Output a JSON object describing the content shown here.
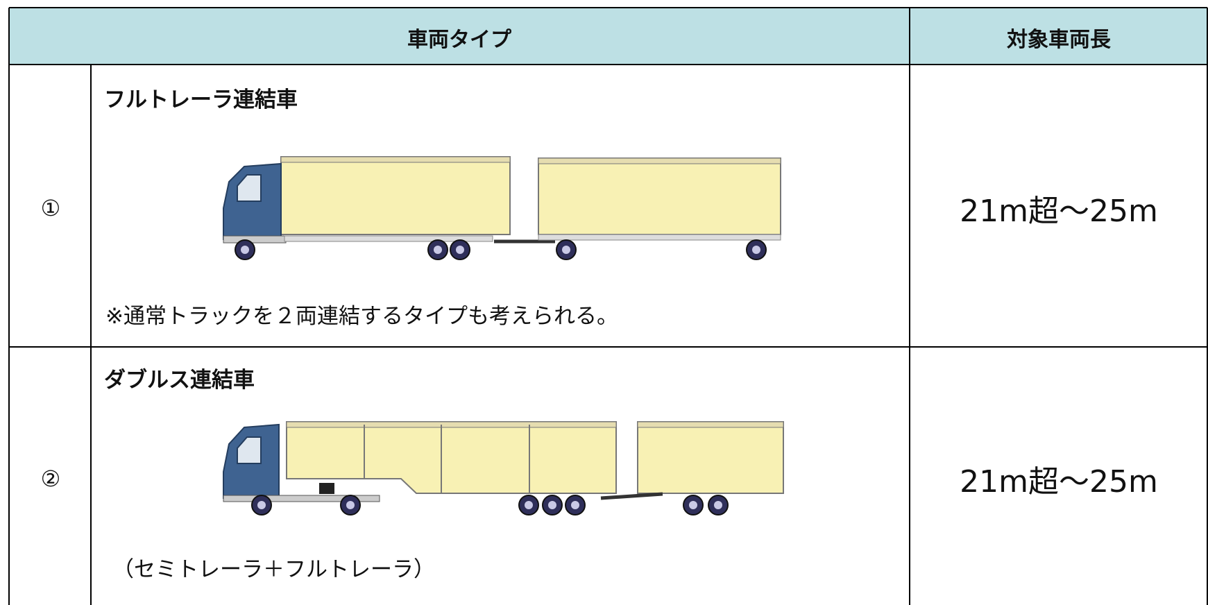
{
  "table": {
    "header": [
      "車両タイプ",
      "対象車両長"
    ],
    "rows": [
      {
        "number": "①",
        "type": "フルトレーラ連結車",
        "note": "※通常トラックを２両連結するタイプも考えられる。",
        "length": "21m超～25m"
      },
      {
        "number": "②",
        "type": "ダブルス連結車",
        "note": "（セミトレーラ＋フルトレーラ）",
        "length": "21m超～25m"
      }
    ]
  }
}
